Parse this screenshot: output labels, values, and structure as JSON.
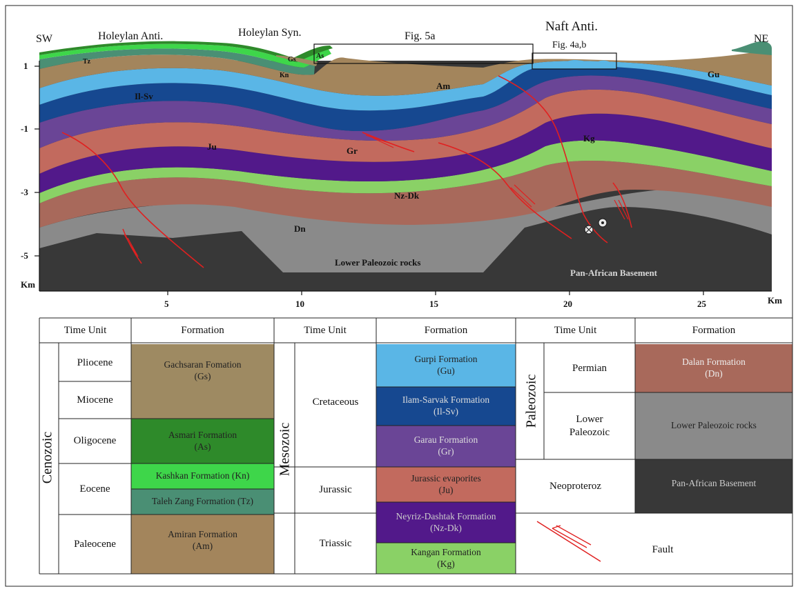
{
  "section": {
    "labels": {
      "sw": "SW",
      "ne": "NE",
      "holeylan_anti": "Holeylan Anti.",
      "holeylan_syn": "Holeylan Syn.",
      "fig5a": "Fig. 5a",
      "naft_anti": "Naft Anti.",
      "fig4ab": "Fig. 4a,b"
    },
    "formation_marks": {
      "tz": "Tz",
      "gs": "Gs",
      "as": "As",
      "kn": "Kn",
      "am": "Am",
      "gu": "Gu",
      "ilsv": "Il-Sv",
      "ju": "Ju",
      "gr": "Gr",
      "kg": "Kg",
      "nzdk": "Nz-Dk",
      "dn": "Dn",
      "lower_paleozoic": "Lower Paleozoic rocks",
      "pan_african": "Pan-African Basement"
    },
    "y_ticks": [
      "1",
      "-1",
      "-3",
      "-5",
      "Km"
    ],
    "x_ticks": [
      "5",
      "10",
      "15",
      "20",
      "25"
    ],
    "x_unit": "Km"
  },
  "colors": {
    "gs": "#9e8a62",
    "as": "#2e8a2a",
    "kn": "#3ed64a",
    "tz": "#4a8f74",
    "am": "#a3855c",
    "gu": "#5ab6e6",
    "ilsv": "#164890",
    "gr": "#6a4596",
    "ju": "#c26a5e",
    "nzdk": "#52198a",
    "kg": "#8ad166",
    "dn": "#a8695b",
    "lower_paleozoic": "#8a8a8a",
    "pan_african": "#383838",
    "fault": "#e02020"
  },
  "legend": {
    "headers": {
      "time_unit_1": "Time Unit",
      "formation_1": "Formation",
      "time_unit_2": "Time Unit",
      "formation_2": "Formation",
      "time_unit_3": "Time Unit",
      "formation_3": "Formation"
    },
    "eras": {
      "cenozoic": "Cenozoic",
      "mesozoic": "Mesozoic",
      "paleozoic": "Paleozoic"
    },
    "epochs": {
      "pliocene": "Pliocene",
      "miocene": "Miocene",
      "oligocene": "Oligocene",
      "eocene": "Eocene",
      "paleocene": "Paleocene",
      "cretaceous": "Cretaceous",
      "jurassic": "Jurassic",
      "triassic": "Triassic",
      "permian": "Permian",
      "lower_paleozoic": "Lower Paleozoic",
      "neoproteroz": "Neoproteroz"
    },
    "formations": {
      "gachsaran": "Gachsaran Fomation (Gs)",
      "asmari": "Asmari Formation (As)",
      "kashkan": "Kashkan Formation (Kn)",
      "taleh_zang": "Taleh Zang Formation (Tz)",
      "amiran": "Amiran Formation (Am)",
      "gurpi": "Gurpi Formation (Gu)",
      "ilam_sarvak": "Ilam-Sarvak Formation (Il-Sv)",
      "garau": "Garau Formation (Gr)",
      "jurassic_evap": "Jurassic evaporites (Ju)",
      "neyriz_dashtak": "Neyriz-Dashtak Formation (Nz-Dk)",
      "kangan": "Kangan Formation (Kg)",
      "dalan": "Dalan Formation (Dn)",
      "lower_paleozoic_rocks": "Lower Paleozoic rocks",
      "pan_african_basement": "Pan-African Basement"
    },
    "fault_label": "Fault"
  }
}
